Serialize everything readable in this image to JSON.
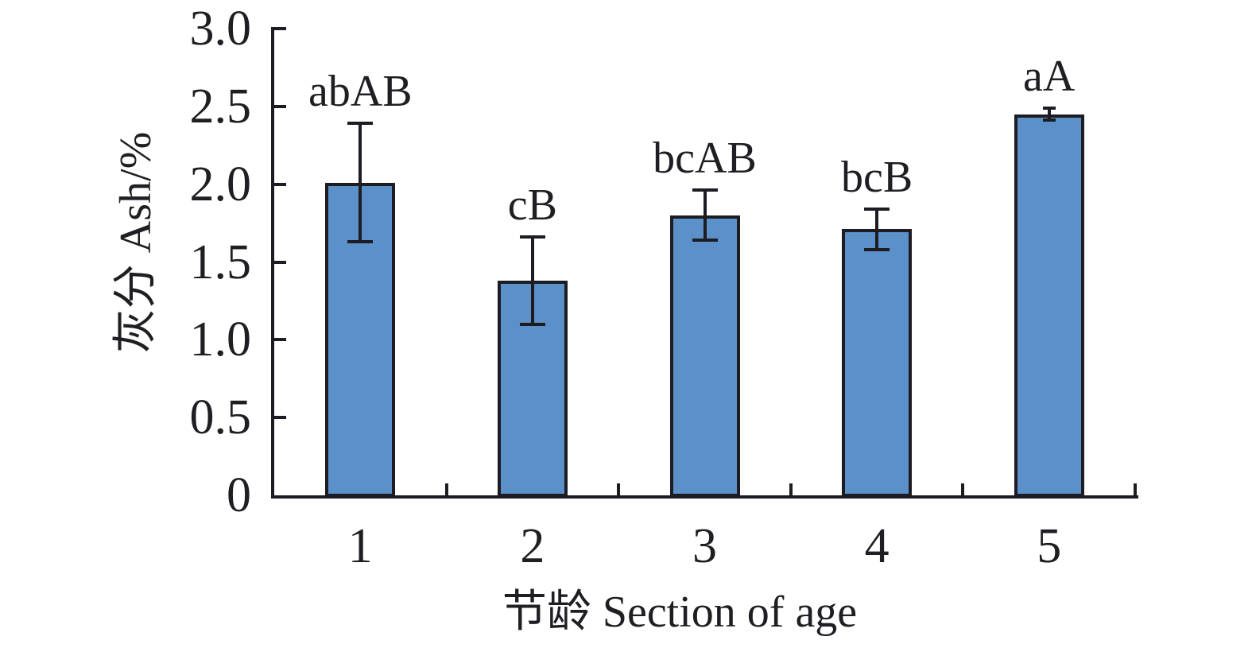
{
  "chart_data": {
    "type": "bar",
    "title": "",
    "categories": [
      "1",
      "2",
      "3",
      "4",
      "5"
    ],
    "values": [
      2.01,
      1.38,
      1.8,
      1.71,
      2.45
    ],
    "errors": [
      0.38,
      0.28,
      0.16,
      0.13,
      0.04
    ],
    "bar_labels": [
      "abAB",
      "cB",
      "bcAB",
      "bcB",
      "aA"
    ],
    "xlabel": "节龄 Section of age",
    "ylabel": "灰分 Ash/%",
    "ylim": [
      0,
      3
    ],
    "yticks": {
      "values": [
        0,
        0.5,
        1,
        1.5,
        2,
        2.5,
        3
      ],
      "labels": [
        "0",
        "0.5",
        "1.0",
        "1.5",
        "2.0",
        "2.5",
        "3.0"
      ]
    },
    "grid": false,
    "legend_position": "none",
    "colors": {
      "bar_fill": "#5b90c8",
      "line": "#1c1c22",
      "text": "#1f1f23",
      "background": "#ffffff"
    }
  }
}
